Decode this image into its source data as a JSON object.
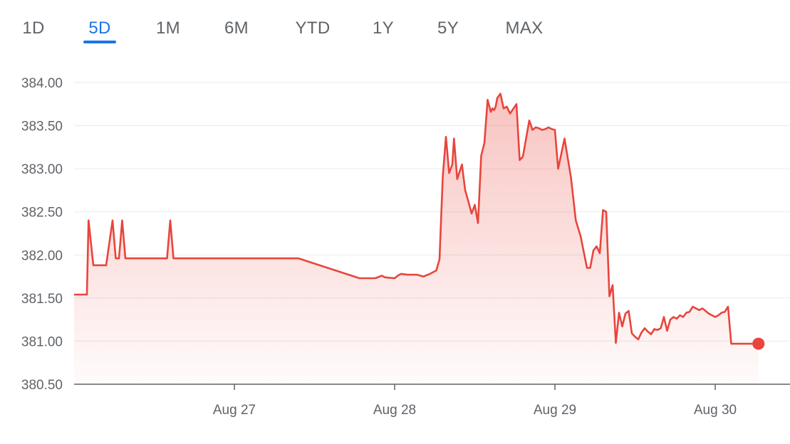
{
  "range_tabs": [
    {
      "label": "1D",
      "active": false
    },
    {
      "label": "5D",
      "active": true
    },
    {
      "label": "1M",
      "active": false
    },
    {
      "label": "6M",
      "active": false
    },
    {
      "label": "YTD",
      "active": false
    },
    {
      "label": "1Y",
      "active": false
    },
    {
      "label": "5Y",
      "active": false
    },
    {
      "label": "MAX",
      "active": false
    }
  ],
  "colors": {
    "line": "#e8453c",
    "active_tab": "#1a73e8",
    "grid": "#e8eaed",
    "axis": "#5f6368"
  },
  "chart_data": {
    "type": "line",
    "title": "",
    "xlabel": "",
    "ylabel": "",
    "ylim": [
      380.5,
      384.0
    ],
    "xlim": [
      0,
      4.5
    ],
    "y_ticks": [
      "384.00",
      "383.50",
      "383.00",
      "382.50",
      "382.00",
      "381.50",
      "381.00",
      "380.50"
    ],
    "y_tick_values": [
      384.0,
      383.5,
      383.0,
      382.5,
      382.0,
      381.5,
      381.0,
      380.5
    ],
    "x_ticks": [
      {
        "label": "Aug 27",
        "value": 1.0
      },
      {
        "label": "Aug 28",
        "value": 2.0
      },
      {
        "label": "Aug 29",
        "value": 3.0
      },
      {
        "label": "Aug 30",
        "value": 4.0
      }
    ],
    "grid": true,
    "series": [
      {
        "x": [
          0.0,
          0.08,
          0.09,
          0.12,
          0.2,
          0.24,
          0.26,
          0.28,
          0.3,
          0.32,
          0.58,
          0.6,
          0.62,
          1.4,
          1.78,
          1.88,
          1.92,
          1.94,
          2.0,
          2.02,
          2.04,
          2.08,
          2.14,
          2.18,
          2.22,
          2.26,
          2.28,
          2.3,
          2.32,
          2.34,
          2.36,
          2.37,
          2.39,
          2.42,
          2.44,
          2.46,
          2.48,
          2.5,
          2.52,
          2.54,
          2.56,
          2.58,
          2.6,
          2.61,
          2.62,
          2.63,
          2.64,
          2.66,
          2.68,
          2.7,
          2.72,
          2.76,
          2.78,
          2.8,
          2.82,
          2.84,
          2.86,
          2.88,
          2.9,
          2.92,
          2.94,
          2.96,
          2.98,
          3.0,
          3.02,
          3.06,
          3.1,
          3.13,
          3.16,
          3.2,
          3.22,
          3.24,
          3.26,
          3.28,
          3.3,
          3.32,
          3.34,
          3.36,
          3.38,
          3.4,
          3.42,
          3.44,
          3.46,
          3.48,
          3.5,
          3.52,
          3.54,
          3.56,
          3.58,
          3.6,
          3.62,
          3.64,
          3.66,
          3.68,
          3.7,
          3.72,
          3.74,
          3.76,
          3.78,
          3.8,
          3.82,
          3.84,
          3.86,
          3.88,
          3.9,
          3.92,
          3.94,
          3.96,
          3.98,
          4.0,
          4.02,
          4.04,
          4.06,
          4.08,
          4.1,
          4.12,
          4.14,
          4.16,
          4.18,
          4.2,
          4.22,
          4.24,
          4.26,
          4.28
        ],
        "values": [
          381.54,
          381.54,
          382.4,
          381.88,
          381.88,
          382.4,
          381.96,
          381.96,
          382.4,
          381.96,
          381.96,
          382.4,
          381.96,
          381.96,
          381.73,
          381.73,
          381.76,
          381.74,
          381.73,
          381.76,
          381.78,
          381.77,
          381.77,
          381.75,
          381.78,
          381.82,
          381.95,
          382.9,
          383.37,
          382.95,
          383.05,
          383.35,
          382.88,
          383.05,
          382.75,
          382.62,
          382.48,
          382.58,
          382.37,
          383.15,
          383.3,
          383.8,
          383.66,
          383.7,
          383.68,
          383.72,
          383.82,
          383.87,
          383.7,
          383.72,
          383.64,
          383.75,
          383.1,
          383.14,
          383.35,
          383.56,
          383.45,
          383.48,
          383.47,
          383.45,
          383.46,
          383.48,
          383.46,
          383.45,
          383.0,
          383.35,
          382.9,
          382.4,
          382.22,
          381.85,
          381.85,
          382.05,
          382.1,
          382.02,
          382.52,
          382.5,
          381.52,
          381.65,
          380.98,
          381.33,
          381.17,
          381.32,
          381.35,
          381.09,
          381.05,
          381.02,
          381.1,
          381.15,
          381.11,
          381.08,
          381.14,
          381.13,
          381.15,
          381.28,
          381.12,
          381.25,
          381.28,
          381.26,
          381.3,
          381.28,
          381.33,
          381.34,
          381.4,
          381.38,
          381.36,
          381.38,
          381.35,
          381.32,
          381.3,
          381.28,
          381.3,
          381.33,
          381.34,
          381.4,
          380.97,
          380.97,
          380.97,
          380.97,
          380.97,
          380.97,
          380.97,
          380.97,
          380.97,
          380.97
        ],
        "last_point": {
          "x": 4.27,
          "value": 380.97
        }
      }
    ]
  }
}
